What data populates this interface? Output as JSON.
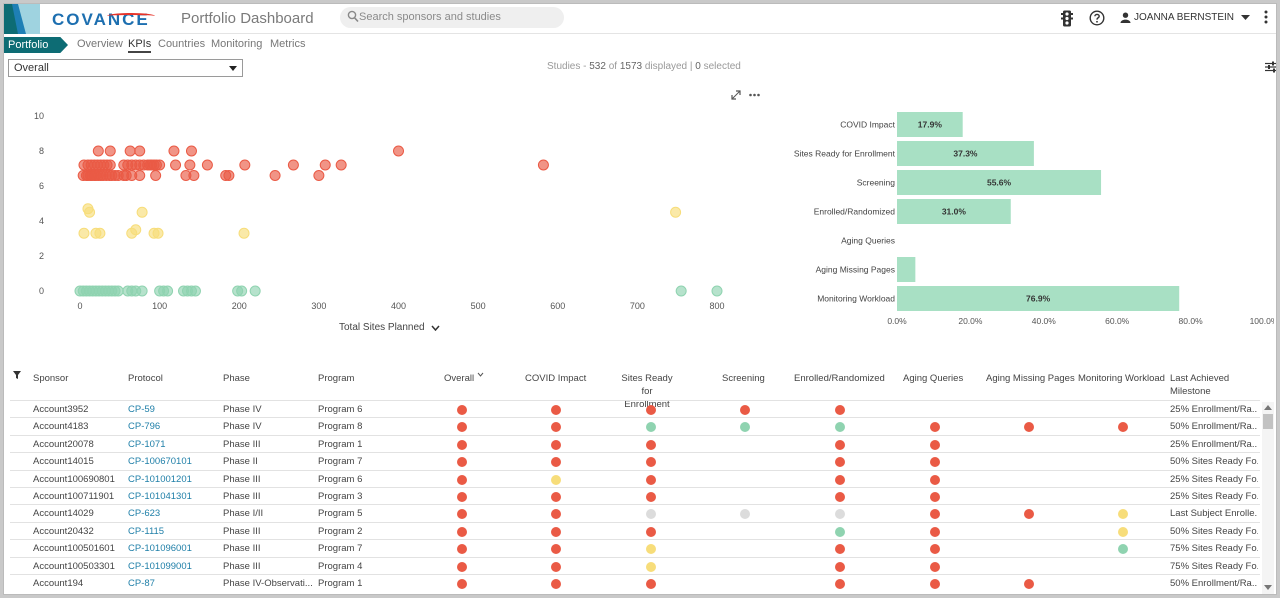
{
  "header": {
    "logo_text": "COVANCE",
    "app_title": "Portfolio Dashboard",
    "search_placeholder": "Search sponsors and studies",
    "user_name": "JOANNA BERNSTEIN",
    "icons": [
      "traffic-light-icon",
      "help-icon",
      "user-icon",
      "chevron-down-icon",
      "more-vertical-icon"
    ]
  },
  "nav": {
    "home": "Portfolio",
    "tabs": [
      "Overview",
      "KPIs",
      "Countries",
      "Monitoring",
      "Metrics"
    ],
    "active_tab": "KPIs"
  },
  "toolbar": {
    "filter_select": "Overall",
    "studies_label": "Studies - ",
    "studies_count": "532",
    "studies_of": " of ",
    "studies_total": "1573",
    "studies_displayed": " displayed | ",
    "studies_selected": "0",
    "studies_selected_label": " selected"
  },
  "colors": {
    "red": "#ea5a45",
    "yellow": "#f7dd7a",
    "green": "#8fd3b0",
    "gray": "#dcdcdc",
    "link": "#1f7fa8",
    "brand_teal": "#0d6c74",
    "bar_fill": "#a8e0c4"
  },
  "chart_data": [
    {
      "type": "scatter",
      "xlabel": "Total Sites Planned",
      "ylabel": "",
      "xlim": [
        0,
        800
      ],
      "ylim": [
        0,
        10
      ],
      "x_ticks": [
        "0",
        "100",
        "200",
        "300",
        "400",
        "500",
        "600",
        "700",
        "800"
      ],
      "y_ticks": [
        "0",
        "2",
        "4",
        "6",
        "8",
        "10"
      ],
      "series": [
        {
          "color": "red",
          "points": [
            [
              4,
              6.6
            ],
            [
              8,
              6.6
            ],
            [
              10,
              6.6
            ],
            [
              13,
              6.6
            ],
            [
              15,
              6.6
            ],
            [
              18,
              6.6
            ],
            [
              20,
              6.6
            ],
            [
              23,
              6.6
            ],
            [
              26,
              6.6
            ],
            [
              29,
              6.6
            ],
            [
              33,
              6.6
            ],
            [
              37,
              6.6
            ],
            [
              40,
              6.6
            ],
            [
              44,
              6.6
            ],
            [
              48,
              6.6
            ],
            [
              55,
              6.6
            ],
            [
              58,
              6.6
            ],
            [
              65,
              6.6
            ],
            [
              75,
              6.6
            ],
            [
              95,
              6.6
            ],
            [
              133,
              6.6
            ],
            [
              143,
              6.6
            ],
            [
              183,
              6.6
            ],
            [
              187,
              6.6
            ],
            [
              245,
              6.6
            ],
            [
              300,
              6.6
            ],
            [
              5,
              7.2
            ],
            [
              10,
              7.2
            ],
            [
              14,
              7.2
            ],
            [
              18,
              7.2
            ],
            [
              22,
              7.2
            ],
            [
              26,
              7.2
            ],
            [
              30,
              7.2
            ],
            [
              34,
              7.2
            ],
            [
              38,
              7.2
            ],
            [
              55,
              7.2
            ],
            [
              60,
              7.2
            ],
            [
              65,
              7.2
            ],
            [
              70,
              7.2
            ],
            [
              75,
              7.2
            ],
            [
              80,
              7.2
            ],
            [
              85,
              7.2
            ],
            [
              88,
              7.2
            ],
            [
              90,
              7.2
            ],
            [
              93,
              7.2
            ],
            [
              96,
              7.2
            ],
            [
              100,
              7.2
            ],
            [
              120,
              7.2
            ],
            [
              138,
              7.2
            ],
            [
              160,
              7.2
            ],
            [
              207,
              7.2
            ],
            [
              268,
              7.2
            ],
            [
              308,
              7.2
            ],
            [
              328,
              7.2
            ],
            [
              582,
              7.2
            ],
            [
              23,
              8.0
            ],
            [
              38,
              8.0
            ],
            [
              63,
              8.0
            ],
            [
              75,
              8.0
            ],
            [
              118,
              8.0
            ],
            [
              140,
              8.0
            ],
            [
              400,
              8.0
            ]
          ]
        },
        {
          "color": "yellow",
          "points": [
            [
              10,
              4.7
            ],
            [
              12,
              4.5
            ],
            [
              78,
              4.5
            ],
            [
              748,
              4.5
            ],
            [
              5,
              3.3
            ],
            [
              20,
              3.3
            ],
            [
              25,
              3.3
            ],
            [
              65,
              3.3
            ],
            [
              70,
              3.5
            ],
            [
              93,
              3.3
            ],
            [
              98,
              3.3
            ],
            [
              206,
              3.3
            ]
          ]
        },
        {
          "color": "green",
          "points": [
            [
              0,
              0
            ],
            [
              4,
              0
            ],
            [
              8,
              0
            ],
            [
              12,
              0
            ],
            [
              16,
              0
            ],
            [
              20,
              0
            ],
            [
              24,
              0
            ],
            [
              28,
              0
            ],
            [
              32,
              0
            ],
            [
              36,
              0
            ],
            [
              40,
              0
            ],
            [
              44,
              0
            ],
            [
              48,
              0
            ],
            [
              60,
              0
            ],
            [
              65,
              0
            ],
            [
              70,
              0
            ],
            [
              78,
              0
            ],
            [
              100,
              0
            ],
            [
              105,
              0
            ],
            [
              110,
              0
            ],
            [
              130,
              0
            ],
            [
              135,
              0
            ],
            [
              140,
              0
            ],
            [
              145,
              0
            ],
            [
              198,
              0
            ],
            [
              203,
              0
            ],
            [
              220,
              0
            ],
            [
              755,
              0
            ],
            [
              800,
              0
            ]
          ]
        }
      ]
    },
    {
      "type": "bar",
      "orientation": "horizontal",
      "categories": [
        "COVID Impact",
        "Sites Ready for Enrollment",
        "Screening",
        "Enrolled/Randomized",
        "Aging Queries",
        "Aging Missing Pages",
        "Monitoring Workload"
      ],
      "values": [
        17.9,
        37.3,
        55.6,
        31.0,
        0,
        5,
        76.9
      ],
      "value_labels": [
        "17.9%",
        "37.3%",
        "55.6%",
        "31.0%",
        "",
        "",
        "76.9%"
      ],
      "xlim": [
        0,
        100
      ],
      "x_ticks": [
        "0.0%",
        "20.0%",
        "40.0%",
        "60.0%",
        "80.0%",
        "100.0%"
      ]
    }
  ],
  "table": {
    "headers": [
      {
        "label": "Sponsor"
      },
      {
        "label": "Protocol"
      },
      {
        "label": "Phase"
      },
      {
        "label": "Program"
      },
      {
        "label": "Overall"
      },
      {
        "label": "COVID Impact"
      },
      {
        "label": "Sites Ready for",
        "label2": "Enrollment"
      },
      {
        "label": "Screening"
      },
      {
        "label": "Enrolled/Randomized"
      },
      {
        "label": "Aging Queries"
      },
      {
        "label": "Aging Missing Pages"
      },
      {
        "label": "Monitoring Workload"
      },
      {
        "label": "Last Achieved",
        "label2": "Milestone"
      }
    ],
    "rows": [
      {
        "sponsor": "Account3952",
        "protocol": "CP-59",
        "phase": "Phase IV",
        "program": "Program 6",
        "kpis": [
          "red",
          "red",
          "red",
          "red",
          "red",
          "",
          "",
          ""
        ],
        "milestone": "25% Enrollment/Ra..."
      },
      {
        "sponsor": "Account4183",
        "protocol": "CP-796",
        "phase": "Phase IV",
        "program": "Program 8",
        "kpis": [
          "red",
          "red",
          "green",
          "green",
          "green",
          "red",
          "red",
          "red"
        ],
        "milestone": "50% Enrollment/Ra..."
      },
      {
        "sponsor": "Account20078",
        "protocol": "CP-1071",
        "phase": "Phase III",
        "program": "Program 1",
        "kpis": [
          "red",
          "red",
          "red",
          "",
          "red",
          "red",
          "",
          ""
        ],
        "milestone": "25% Enrollment/Ra..."
      },
      {
        "sponsor": "Account14015",
        "protocol": "CP-100670101",
        "phase": "Phase II",
        "program": "Program 7",
        "kpis": [
          "red",
          "red",
          "red",
          "",
          "red",
          "red",
          "",
          ""
        ],
        "milestone": "50% Sites Ready Fo..."
      },
      {
        "sponsor": "Account100690801",
        "protocol": "CP-101001201",
        "phase": "Phase III",
        "program": "Program 6",
        "kpis": [
          "red",
          "yellow",
          "red",
          "",
          "red",
          "red",
          "",
          ""
        ],
        "milestone": "25% Sites Ready Fo..."
      },
      {
        "sponsor": "Account100711901",
        "protocol": "CP-101041301",
        "phase": "Phase III",
        "program": "Program 3",
        "kpis": [
          "red",
          "red",
          "red",
          "",
          "red",
          "red",
          "",
          ""
        ],
        "milestone": "25% Sites Ready Fo..."
      },
      {
        "sponsor": "Account14029",
        "protocol": "CP-623",
        "phase": "Phase I/II",
        "program": "Program 5",
        "kpis": [
          "red",
          "red",
          "gray",
          "gray",
          "gray",
          "red",
          "red",
          "yellow"
        ],
        "milestone": "Last Subject Enrolle..."
      },
      {
        "sponsor": "Account20432",
        "protocol": "CP-1115",
        "phase": "Phase III",
        "program": "Program 2",
        "kpis": [
          "red",
          "red",
          "red",
          "",
          "green",
          "red",
          "",
          "yellow"
        ],
        "milestone": "50% Sites Ready Fo..."
      },
      {
        "sponsor": "Account100501601",
        "protocol": "CP-101096001",
        "phase": "Phase III",
        "program": "Program 7",
        "kpis": [
          "red",
          "red",
          "yellow",
          "",
          "red",
          "red",
          "",
          "green"
        ],
        "milestone": "75% Sites Ready Fo..."
      },
      {
        "sponsor": "Account100503301",
        "protocol": "CP-101099001",
        "phase": "Phase III",
        "program": "Program 4",
        "kpis": [
          "red",
          "red",
          "yellow",
          "",
          "red",
          "red",
          "",
          ""
        ],
        "milestone": "75% Sites Ready Fo..."
      },
      {
        "sponsor": "Account194",
        "protocol": "CP-87",
        "phase": "Phase IV-Observati...",
        "program": "Program 1",
        "kpis": [
          "red",
          "red",
          "red",
          "",
          "red",
          "red",
          "red",
          ""
        ],
        "milestone": "50% Enrollment/Ra..."
      }
    ]
  }
}
